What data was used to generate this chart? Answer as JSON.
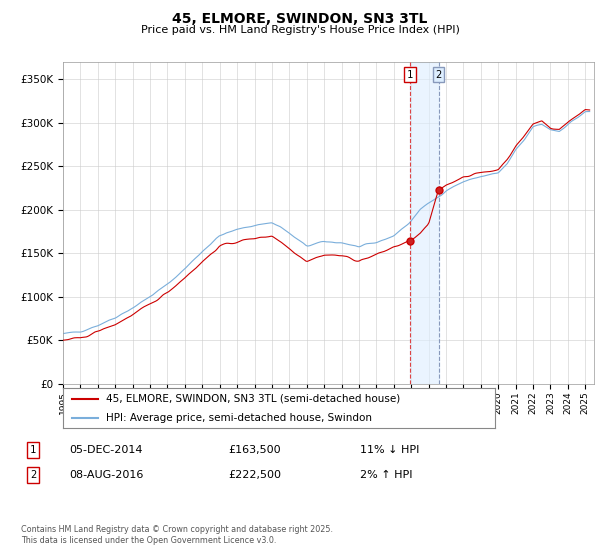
{
  "title": "45, ELMORE, SWINDON, SN3 3TL",
  "subtitle": "Price paid vs. HM Land Registry's House Price Index (HPI)",
  "ylabel_ticks": [
    "£0",
    "£50K",
    "£100K",
    "£150K",
    "£200K",
    "£250K",
    "£300K",
    "£350K"
  ],
  "ytick_vals": [
    0,
    50000,
    100000,
    150000,
    200000,
    250000,
    300000,
    350000
  ],
  "ylim": [
    0,
    370000
  ],
  "xlim_start": 1995.0,
  "xlim_end": 2025.5,
  "legend1_label": "45, ELMORE, SWINDON, SN3 3TL (semi-detached house)",
  "legend2_label": "HPI: Average price, semi-detached house, Swindon",
  "annotation1_date": "05-DEC-2014",
  "annotation1_price": "£163,500",
  "annotation1_hpi": "11% ↓ HPI",
  "annotation2_date": "08-AUG-2016",
  "annotation2_price": "£222,500",
  "annotation2_hpi": "2% ↑ HPI",
  "footer": "Contains HM Land Registry data © Crown copyright and database right 2025.\nThis data is licensed under the Open Government Licence v3.0.",
  "line_color_red": "#cc0000",
  "line_color_blue": "#7aaedb",
  "marker1_x": 2014.92,
  "marker1_y": 163500,
  "marker2_x": 2016.58,
  "marker2_y": 222500,
  "vline1_x": 2014.92,
  "vline2_x": 2016.58,
  "bg_color": "#ffffff"
}
